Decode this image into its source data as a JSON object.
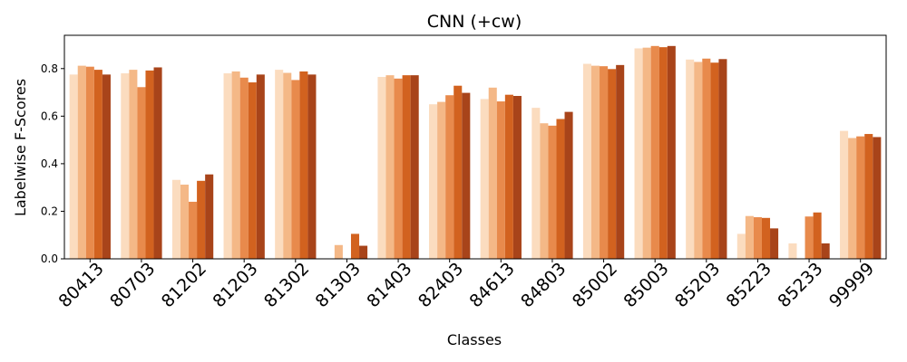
{
  "chart_data": {
    "type": "bar",
    "title": "CNN (+cw)",
    "xlabel": "Classes",
    "ylabel": "Labelwise F-Scores",
    "ylim": [
      0,
      0.94
    ],
    "yticks": [
      "0.0",
      "0.2",
      "0.4",
      "0.6",
      "0.8"
    ],
    "grid": false,
    "categories": [
      "80413",
      "80703",
      "81202",
      "81203",
      "81302",
      "81303",
      "81403",
      "82403",
      "84613",
      "84803",
      "85002",
      "85003",
      "85203",
      "85223",
      "85233",
      "99999"
    ],
    "colors": [
      "#fbdcbf",
      "#f4b887",
      "#e88a4c",
      "#d2621f",
      "#a8441a"
    ],
    "series": [
      {
        "values": [
          0.775,
          0.78,
          0.332,
          0.78,
          0.795,
          0.0,
          0.765,
          0.65,
          0.672,
          0.635,
          0.82,
          0.885,
          0.838,
          0.105,
          0.065,
          0.538
        ]
      },
      {
        "values": [
          0.812,
          0.795,
          0.312,
          0.788,
          0.782,
          0.058,
          0.772,
          0.66,
          0.72,
          0.57,
          0.812,
          0.888,
          0.828,
          0.18,
          0.0,
          0.508
        ]
      },
      {
        "values": [
          0.808,
          0.722,
          0.24,
          0.762,
          0.752,
          0.0,
          0.758,
          0.688,
          0.662,
          0.56,
          0.81,
          0.895,
          0.842,
          0.175,
          0.178,
          0.515
        ]
      },
      {
        "values": [
          0.795,
          0.792,
          0.328,
          0.742,
          0.788,
          0.105,
          0.772,
          0.728,
          0.69,
          0.588,
          0.798,
          0.89,
          0.825,
          0.172,
          0.195,
          0.525
        ]
      },
      {
        "values": [
          0.775,
          0.805,
          0.355,
          0.775,
          0.775,
          0.055,
          0.772,
          0.698,
          0.685,
          0.618,
          0.815,
          0.895,
          0.84,
          0.128,
          0.065,
          0.512
        ]
      }
    ]
  }
}
